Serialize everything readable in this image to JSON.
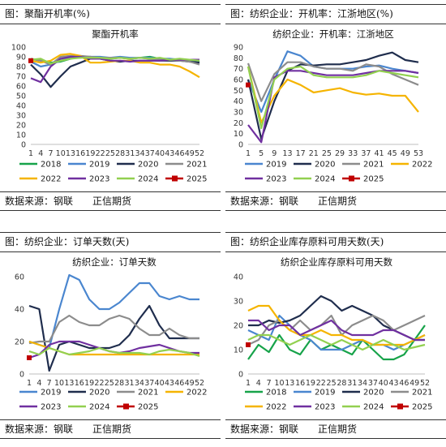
{
  "panels": [
    {
      "header": "图：聚酯开机率(%)",
      "footer": "数据来源：钢联　　正信期货",
      "chart_data": {
        "type": "line",
        "title": "聚酯开机率",
        "xlabel": "",
        "ylabel": "",
        "x": [
          1,
          4,
          7,
          10,
          13,
          16,
          19,
          22,
          25,
          28,
          31,
          34,
          37,
          40,
          43,
          46,
          49,
          52
        ],
        "xticklabels": [
          "1",
          "4",
          "7",
          "10",
          "13",
          "16",
          "19",
          "22",
          "25",
          "28",
          "31",
          "34",
          "37",
          "40",
          "43",
          "46",
          "49",
          "52"
        ],
        "ylim": [
          0,
          100
        ],
        "yticks": [
          0,
          10,
          20,
          30,
          40,
          50,
          60,
          70,
          80,
          90,
          100
        ],
        "grid": false,
        "legend": "bottom",
        "series": [
          {
            "name": "2018",
            "color": "#17a34a",
            "values": [
              88,
              86,
              84,
              85,
              88,
              90,
              90,
              89,
              88,
              89,
              88,
              89,
              90,
              88,
              87,
              87,
              86,
              85
            ]
          },
          {
            "name": "2019",
            "color": "#4a86cf",
            "values": [
              85,
              80,
              82,
              86,
              89,
              89,
              90,
              90,
              89,
              90,
              89,
              89,
              89,
              88,
              88,
              87,
              86,
              84
            ]
          },
          {
            "name": "2020",
            "color": "#1f2d4d",
            "values": [
              82,
              72,
              59,
              70,
              80,
              84,
              88,
              88,
              86,
              85,
              86,
              86,
              86,
              86,
              86,
              86,
              85,
              84
            ]
          },
          {
            "name": "2021",
            "color": "#8c8c8c",
            "values": [
              88,
              86,
              82,
              90,
              91,
              91,
              90,
              89,
              89,
              89,
              88,
              89,
              88,
              88,
              87,
              86,
              85,
              82
            ]
          },
          {
            "name": "2022",
            "color": "#f5b400",
            "values": [
              86,
              84,
              86,
              92,
              93,
              91,
              84,
              84,
              85,
              86,
              86,
              84,
              84,
              82,
              82,
              80,
              75,
              69
            ]
          },
          {
            "name": "2023",
            "color": "#7030a0",
            "values": [
              68,
              64,
              80,
              88,
              90,
              90,
              88,
              88,
              86,
              86,
              85,
              86,
              86,
              86,
              87,
              87,
              87,
              87
            ]
          },
          {
            "name": "2024",
            "color": "#92d050",
            "values": [
              87,
              88,
              83,
              86,
              88,
              89,
              89,
              89,
              88,
              89,
              88,
              89,
              88,
              89,
              87,
              88,
              87,
              86
            ]
          },
          {
            "name": "2025",
            "color": "#c00000",
            "values": [
              86,
              null,
              null,
              null,
              null,
              null,
              null,
              null,
              null,
              null,
              null,
              null,
              null,
              null,
              null,
              null,
              null,
              null
            ]
          }
        ]
      }
    },
    {
      "header": "图：纺织企业：开机率：江浙地区(%)",
      "footer": "数据来源：钢联　　正信期货",
      "chart_data": {
        "type": "line",
        "title": "纺织企业：开机率：江浙地区",
        "xlabel": "",
        "ylabel": "",
        "x": [
          1,
          5,
          9,
          13,
          17,
          21,
          25,
          29,
          33,
          37,
          41,
          45,
          49,
          53
        ],
        "xticklabels": [
          "1",
          "5",
          "9",
          "13",
          "17",
          "21",
          "25",
          "29",
          "33",
          "37",
          "41",
          "45",
          "49",
          "53"
        ],
        "ylim": [
          0,
          90
        ],
        "yticks": [
          0,
          10,
          20,
          30,
          40,
          50,
          60,
          70,
          80,
          90
        ],
        "grid": false,
        "legend": "bottom",
        "series": [
          {
            "name": "2019",
            "color": "#4a86cf",
            "values": [
              60,
              30,
              60,
              86,
              82,
              72,
              70,
              70,
              70,
              72,
              73,
              70,
              68,
              66
            ]
          },
          {
            "name": "2020",
            "color": "#1f2d4d",
            "values": [
              60,
              5,
              40,
              68,
              74,
              73,
              74,
              74,
              76,
              78,
              82,
              85,
              78,
              76
            ]
          },
          {
            "name": "2021",
            "color": "#8c8c8c",
            "values": [
              75,
              40,
              65,
              76,
              76,
              72,
              70,
              70,
              68,
              74,
              72,
              65,
              60,
              55
            ]
          },
          {
            "name": "2022",
            "color": "#f5b400",
            "values": [
              72,
              20,
              45,
              60,
              55,
              48,
              50,
              52,
              48,
              46,
              47,
              45,
              45,
              30
            ]
          },
          {
            "name": "2023",
            "color": "#7030a0",
            "values": [
              18,
              2,
              62,
              68,
              68,
              66,
              64,
              64,
              64,
              66,
              68,
              68,
              68,
              66
            ]
          },
          {
            "name": "2024",
            "color": "#92d050",
            "values": [
              72,
              15,
              60,
              70,
              72,
              64,
              62,
              62,
              62,
              64,
              68,
              66,
              64,
              62
            ]
          },
          {
            "name": "2025",
            "color": "#c00000",
            "values": [
              55,
              null,
              null,
              null,
              null,
              null,
              null,
              null,
              null,
              null,
              null,
              null,
              null,
              null
            ]
          }
        ]
      }
    },
    {
      "header": "图：纺织企业：订单天数(天)",
      "footer": "数据来源：钢联　　正信期货",
      "chart_data": {
        "type": "line",
        "title": "纺织企业：订单天数",
        "xlabel": "",
        "ylabel": "",
        "x": [
          1,
          4,
          7,
          10,
          13,
          16,
          19,
          22,
          25,
          28,
          31,
          34,
          37,
          40,
          43,
          46,
          49,
          52
        ],
        "xticklabels": [
          "1",
          "4",
          "7",
          "10",
          "13",
          "16",
          "19",
          "22",
          "25",
          "28",
          "31",
          "34",
          "37",
          "40",
          "43",
          "46",
          "49",
          "52"
        ],
        "ylim": [
          0,
          60
        ],
        "yticks": [
          0,
          20,
          40,
          60
        ],
        "grid": false,
        "legend": "bottom",
        "series": [
          {
            "name": "2019",
            "color": "#4a86cf",
            "values": [
              20,
              18,
              16,
              40,
              61,
              58,
              46,
              40,
              40,
              44,
              50,
              56,
              56,
              48,
              46,
              48,
              46,
              46
            ]
          },
          {
            "name": "2020",
            "color": "#1f2d4d",
            "values": [
              42,
              40,
              2,
              18,
              20,
              18,
              16,
              16,
              16,
              18,
              24,
              34,
              42,
              30,
              22,
              22,
              22,
              22
            ]
          },
          {
            "name": "2021",
            "color": "#8c8c8c",
            "values": [
              19,
              20,
              20,
              32,
              36,
              32,
              30,
              30,
              34,
              36,
              34,
              28,
              24,
              24,
              28,
              24,
              22,
              22
            ]
          },
          {
            "name": "2022",
            "color": "#f5b400",
            "values": [
              20,
              18,
              16,
              14,
              12,
              12,
              12,
              12,
              12,
              12,
              12,
              12,
              12,
              12,
              12,
              12,
              12,
              12
            ]
          },
          {
            "name": "2023",
            "color": "#7030a0",
            "values": [
              10,
              12,
              18,
              20,
              20,
              20,
              18,
              16,
              14,
              13,
              14,
              16,
              17,
              18,
              16,
              14,
              13,
              13
            ]
          },
          {
            "name": "2024",
            "color": "#92d050",
            "values": [
              14,
              12,
              16,
              14,
              12,
              13,
              14,
              16,
              14,
              13,
              13,
              13,
              12,
              14,
              15,
              14,
              13,
              11
            ]
          },
          {
            "name": "2025",
            "color": "#c00000",
            "values": [
              10,
              null,
              null,
              null,
              null,
              null,
              null,
              null,
              null,
              null,
              null,
              null,
              null,
              null,
              null,
              null,
              null,
              null
            ]
          }
        ]
      }
    },
    {
      "header": "图：纺织企业库存原料可用天数(天)",
      "footer": "数据来源：钢联　　正信期货",
      "chart_data": {
        "type": "line",
        "title": "纺织企业库存原料可用天数",
        "xlabel": "",
        "ylabel": "",
        "x": [
          1,
          4,
          7,
          10,
          13,
          16,
          19,
          22,
          25,
          28,
          31,
          34,
          37,
          40,
          43,
          46,
          49,
          52
        ],
        "xticklabels": [
          "1",
          "4",
          "7",
          "10",
          "13",
          "16",
          "19",
          "22",
          "25",
          "28",
          "31",
          "34",
          "37",
          "40",
          "43",
          "46",
          "49",
          "52"
        ],
        "ylim": [
          0,
          40
        ],
        "yticks": [
          0,
          10,
          20,
          30,
          40
        ],
        "grid": false,
        "legend": "bottom",
        "series": [
          {
            "name": "2018",
            "color": "#17a34a",
            "values": [
              6,
              12,
              9,
              16,
              10,
              8,
              14,
              10,
              12,
              10,
              8,
              14,
              10,
              6,
              6,
              8,
              14,
              20
            ]
          },
          {
            "name": "2019",
            "color": "#4a86cf",
            "values": [
              18,
              16,
              14,
              24,
              20,
              16,
              14,
              10,
              10,
              10,
              12,
              14,
              12,
              12,
              10,
              12,
              14,
              16
            ]
          },
          {
            "name": "2020",
            "color": "#1f2d4d",
            "values": [
              20,
              20,
              22,
              21,
              22,
              24,
              28,
              32,
              30,
              26,
              28,
              26,
              24,
              20,
              18,
              16,
              14,
              14
            ]
          },
          {
            "name": "2021",
            "color": "#8c8c8c",
            "values": [
              12,
              14,
              20,
              22,
              18,
              22,
              18,
              20,
              24,
              16,
              20,
              22,
              24,
              22,
              18,
              20,
              22,
              24
            ]
          },
          {
            "name": "2022",
            "color": "#f5b400",
            "values": [
              26,
              28,
              28,
              22,
              18,
              16,
              16,
              18,
              16,
              16,
              14,
              14,
              12,
              12,
              12,
              12,
              14,
              16
            ]
          },
          {
            "name": "2023",
            "color": "#7030a0",
            "values": [
              22,
              22,
              18,
              20,
              20,
              16,
              18,
              20,
              22,
              18,
              16,
              16,
              16,
              18,
              18,
              16,
              14,
              14
            ]
          },
          {
            "name": "2024",
            "color": "#92d050",
            "values": [
              14,
              16,
              16,
              14,
              12,
              14,
              16,
              14,
              12,
              14,
              12,
              10,
              12,
              14,
              12,
              10,
              11,
              12
            ]
          },
          {
            "name": "2025",
            "color": "#c00000",
            "values": [
              12,
              null,
              null,
              null,
              null,
              null,
              null,
              null,
              null,
              null,
              null,
              null,
              null,
              null,
              null,
              null,
              null,
              null
            ]
          }
        ]
      }
    }
  ]
}
